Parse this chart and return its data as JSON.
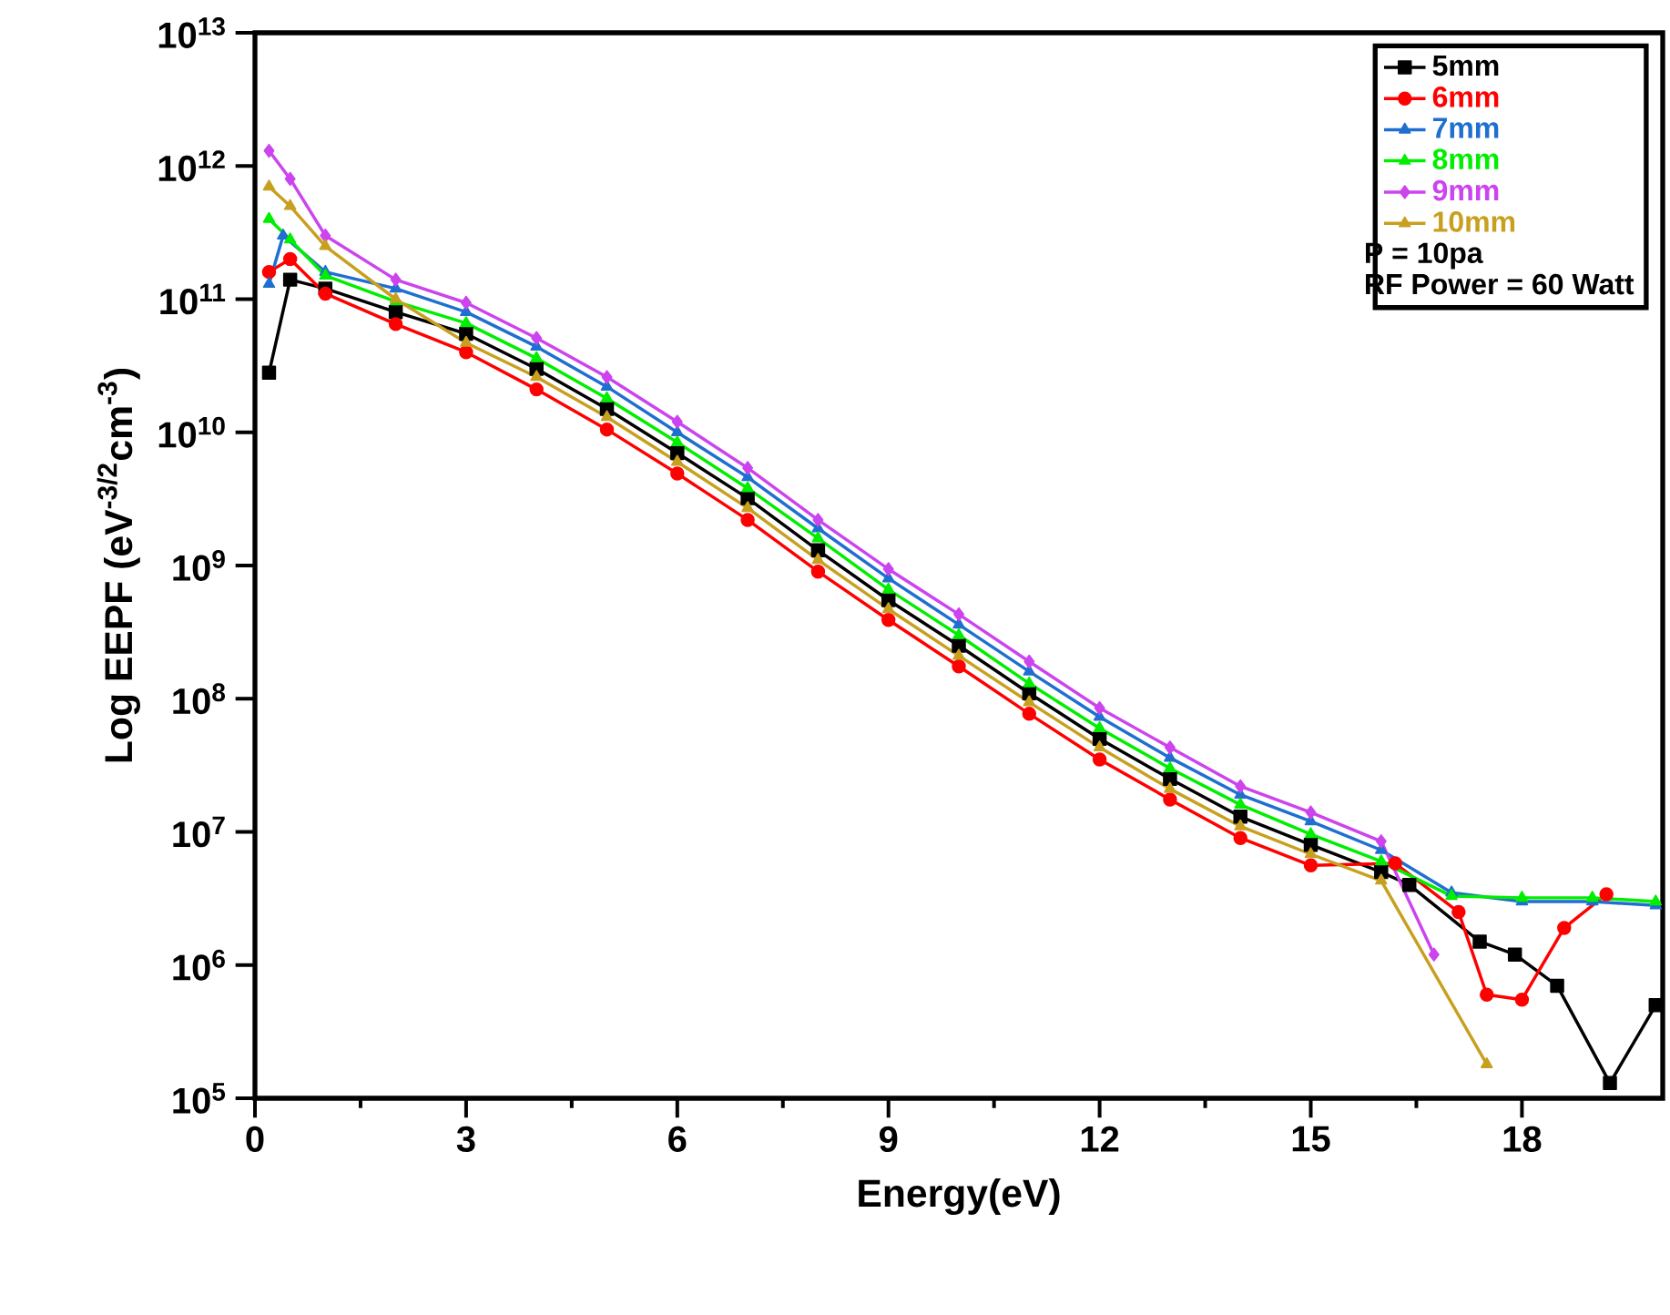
{
  "chart_data": {
    "type": "line",
    "xlabel": "Energy(eV)",
    "ylabel": "Log EEPF (eV$^{-3/2}$cm$^{-3}$)",
    "log": "y",
    "legend": "top right",
    "xlim": [
      0,
      20
    ],
    "xticks": [
      0,
      3,
      6,
      9,
      12,
      15,
      18
    ],
    "ylim": [
      100000.0,
      10000000000000.0
    ],
    "yticks": [
      {
        "value": 100000.0,
        "label": "10$^{5}$"
      },
      {
        "value": 1000000.0,
        "label": "10$^{6}$"
      },
      {
        "value": 10000000.0,
        "label": "10$^{7}$"
      },
      {
        "value": 100000000.0,
        "label": "10$^{8}$"
      },
      {
        "value": 1000000000.0,
        "label": "10$^{9}$"
      },
      {
        "value": 10000000000.0,
        "label": "10$^{10}$"
      },
      {
        "value": 100000000000.0,
        "label": "10$^{11}$"
      },
      {
        "value": 1000000000000.0,
        "label": "10$^{12}$"
      },
      {
        "value": 10000000000000.0,
        "label": "10$^{13}$"
      }
    ],
    "annotations": [
      "P = 10pa",
      "RF Power = 60 Watt"
    ],
    "series": [
      {
        "name": "5mm",
        "color": "#000000",
        "marker": "square",
        "x": [
          0.2,
          0.5,
          1,
          2,
          3,
          4,
          5,
          6,
          7,
          8,
          9,
          10,
          11,
          12,
          13,
          14,
          15,
          16,
          16.4,
          17.4,
          17.9,
          18.5,
          19.25,
          19.9
        ],
        "values": [
          28000000000.0,
          140000000000.0,
          120000000000.0,
          80000000000.0,
          55000000000.0,
          30000000000.0,
          15000000000.0,
          7000000000.0,
          3200000000.0,
          1300000000.0,
          550000000.0,
          250000000.0,
          110000000.0,
          50000000.0,
          25000000.0,
          13000000.0,
          8000000.0,
          5000000.0,
          4000000.0,
          1500000.0,
          1200000.0,
          700000.0,
          130000.0,
          500000.0
        ]
      },
      {
        "name": "6mm",
        "color": "#ff0000",
        "marker": "circle",
        "x": [
          0.2,
          0.5,
          1,
          2,
          3,
          4,
          5,
          6,
          7,
          8,
          9,
          10,
          11,
          12,
          13,
          14,
          15,
          16.2,
          17.1,
          17.5,
          18,
          18.6,
          19.2
        ],
        "values": [
          160000000000.0,
          200000000000.0,
          110000000000.0,
          65000000000.0,
          40000000000.0,
          21000000000.0,
          10500000000.0,
          4900000000.0,
          2200000000.0,
          900000000.0,
          390000000.0,
          175000000.0,
          77000000.0,
          35000000.0,
          17500000.0,
          9000000.0,
          5600000.0,
          5800000.0,
          2500000.0,
          600000.0,
          550000.0,
          1900000.0,
          3400000.0
        ]
      },
      {
        "name": "7mm",
        "color": "#1f6fd0",
        "marker": "triangle",
        "x": [
          0.2,
          0.4,
          1,
          2,
          3,
          4,
          5,
          6,
          7,
          8,
          9,
          10,
          11,
          12,
          13,
          14,
          15,
          16,
          17,
          18,
          19,
          19.9
        ],
        "values": [
          130000000000.0,
          300000000000.0,
          160000000000.0,
          120000000000.0,
          80000000000.0,
          44000000000.0,
          22000000000.0,
          10000000000.0,
          4600000000.0,
          1900000000.0,
          800000000.0,
          360000000.0,
          160000000.0,
          73000000.0,
          36000000.0,
          19000000.0,
          12000000.0,
          7300000.0,
          3500000.0,
          3000000.0,
          3000000.0,
          2800000.0
        ]
      },
      {
        "name": "8mm",
        "color": "#00ee00",
        "marker": "triangle",
        "x": [
          0.2,
          0.5,
          1,
          2,
          3,
          4,
          5,
          6,
          7,
          8,
          9,
          10,
          11,
          12,
          13,
          14,
          15,
          16,
          17,
          18,
          19,
          19.9
        ],
        "values": [
          400000000000.0,
          280000000000.0,
          150000000000.0,
          96000000000.0,
          66000000000.0,
          36000000000.0,
          18000000000.0,
          8400000000.0,
          3800000000.0,
          1600000000.0,
          660000000.0,
          300000000.0,
          130000000.0,
          60000000.0,
          30000000.0,
          16000000.0,
          9600000.0,
          6000000.0,
          3300000.0,
          3200000.0,
          3200000.0,
          3000000.0
        ]
      },
      {
        "name": "9mm",
        "color": "#cc44ee",
        "marker": "diamond",
        "x": [
          0.2,
          0.5,
          1,
          2,
          3,
          4,
          5,
          6,
          7,
          8,
          9,
          10,
          11,
          12,
          13,
          14,
          15,
          16,
          16.75
        ],
        "values": [
          1300000000000.0,
          800000000000.0,
          300000000000.0,
          140000000000.0,
          94000000000.0,
          51000000000.0,
          26000000000.0,
          12000000000.0,
          5400000000.0,
          2200000000.0,
          940000000.0,
          430000000.0,
          190000000.0,
          85000000.0,
          43000000.0,
          22000000.0,
          14000000.0,
          8500000.0,
          1200000.0
        ]
      },
      {
        "name": "10mm",
        "color": "#c8a020",
        "marker": "triangle",
        "x": [
          0.2,
          0.5,
          1,
          2,
          3,
          4,
          5,
          6,
          7,
          8,
          9,
          10,
          11,
          12,
          13,
          14,
          15,
          16,
          17.5
        ],
        "values": [
          700000000000.0,
          500000000000.0,
          250000000000.0,
          100000000000.0,
          47000000000.0,
          26000000000.0,
          13000000000.0,
          6000000000.0,
          2700000000.0,
          1100000000.0,
          470000000.0,
          210000000.0,
          94000000.0,
          43000000.0,
          21000000.0,
          11000000.0,
          6800000.0,
          4300000.0,
          180000.0
        ]
      }
    ]
  }
}
